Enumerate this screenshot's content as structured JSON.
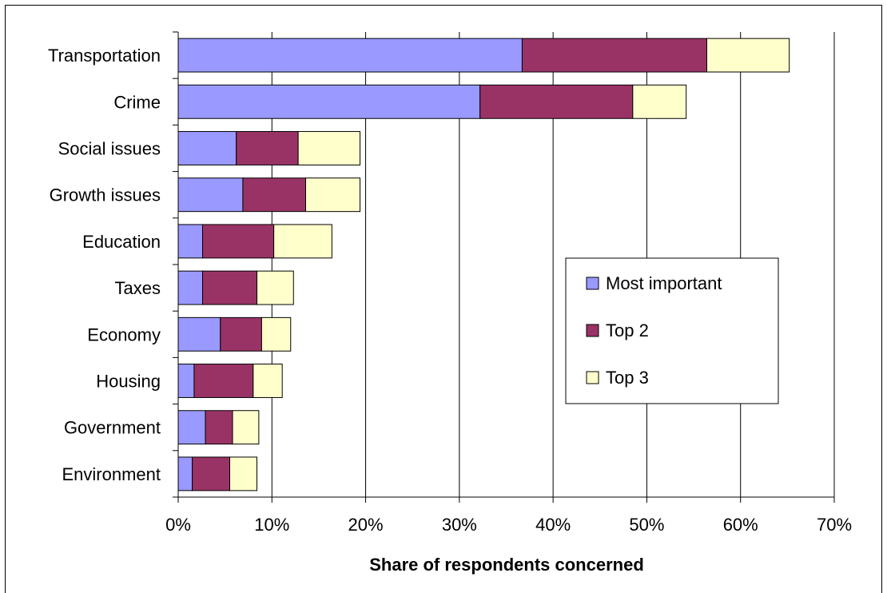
{
  "chart_data": {
    "type": "bar",
    "orientation": "horizontal",
    "stacked": true,
    "categories": [
      "Transportation",
      "Crime",
      "Social issues",
      "Growth issues",
      "Education",
      "Taxes",
      "Economy",
      "Housing",
      "Government",
      "Environment"
    ],
    "series": [
      {
        "name": "Most important",
        "color": "#9999ff",
        "values": [
          36.7,
          32.2,
          6.2,
          6.9,
          2.6,
          2.6,
          4.5,
          1.7,
          2.9,
          1.5
        ]
      },
      {
        "name": "Top 2",
        "color": "#993366",
        "values": [
          19.7,
          16.3,
          6.6,
          6.7,
          7.6,
          5.8,
          4.4,
          6.3,
          2.9,
          4.0
        ]
      },
      {
        "name": "Top 3",
        "color": "#ffffcc",
        "values": [
          8.8,
          5.7,
          6.6,
          5.8,
          6.2,
          3.9,
          3.1,
          3.1,
          2.8,
          2.9
        ]
      }
    ],
    "xlabel": "Share of respondents concerned",
    "xlim": [
      0,
      70
    ],
    "xticks": [
      "0%",
      "10%",
      "20%",
      "30%",
      "40%",
      "50%",
      "60%",
      "70%"
    ],
    "grid": "vertical",
    "legend_position": "right"
  }
}
